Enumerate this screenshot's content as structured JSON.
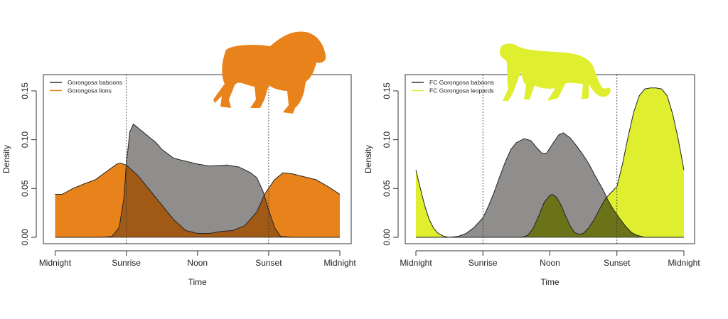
{
  "chart_data": [
    {
      "type": "area",
      "title": "",
      "xlabel": "Time",
      "ylabel": "Density",
      "xlim": [
        0,
        24
      ],
      "ylim": [
        0,
        0.165
      ],
      "xticks": [
        0,
        6,
        12,
        18,
        24
      ],
      "xtick_labels": [
        "Midnight",
        "Sunrise",
        "Noon",
        "Sunset",
        "Midnight"
      ],
      "yticks": [
        0,
        0.05,
        0.1,
        0.15
      ],
      "ytick_labels": [
        "0.00",
        "0.05",
        "0.10",
        "0.15"
      ],
      "vlines": [
        6,
        18
      ],
      "legend_position": "top-left",
      "overlap_color": "#a05a16",
      "series": [
        {
          "name": "Gorongosa baboons",
          "color": "#8f8e8c",
          "x": [
            0,
            4,
            4.8,
            5.4,
            5.8,
            6,
            6.3,
            6.6,
            7,
            7.8,
            8.5,
            9,
            10,
            11,
            12,
            13,
            14.5,
            15.5,
            16.5,
            17,
            17.5,
            18,
            18.5,
            19,
            20,
            24
          ],
          "y": [
            0,
            0,
            0.001,
            0.01,
            0.04,
            0.075,
            0.108,
            0.116,
            0.112,
            0.104,
            0.097,
            0.09,
            0.081,
            0.078,
            0.075,
            0.073,
            0.074,
            0.072,
            0.066,
            0.061,
            0.048,
            0.028,
            0.01,
            0.001,
            0,
            0
          ]
        },
        {
          "name": "Gorongosa lions",
          "color": "#e8821a",
          "x": [
            0,
            0.6,
            1.5,
            2.5,
            3.4,
            4.4,
            5.2,
            5.5,
            6,
            7,
            8,
            9,
            10,
            11,
            12,
            13,
            14,
            15,
            16,
            17,
            17.7,
            18.5,
            19.2,
            20,
            21,
            22,
            23,
            24
          ],
          "y": [
            0.044,
            0.044,
            0.05,
            0.055,
            0.059,
            0.068,
            0.075,
            0.076,
            0.074,
            0.063,
            0.048,
            0.033,
            0.018,
            0.007,
            0.004,
            0.004,
            0.006,
            0.007,
            0.012,
            0.026,
            0.045,
            0.059,
            0.066,
            0.065,
            0.062,
            0.059,
            0.052,
            0.044
          ]
        }
      ]
    },
    {
      "type": "area",
      "title": "",
      "xlabel": "Time",
      "ylabel": "Density",
      "xlim": [
        0,
        24
      ],
      "ylim": [
        0,
        0.165
      ],
      "xticks": [
        0,
        6,
        12,
        18,
        24
      ],
      "xtick_labels": [
        "Midnight",
        "Sunrise",
        "Noon",
        "Sunset",
        "Midnight"
      ],
      "yticks": [
        0,
        0.05,
        0.1,
        0.15
      ],
      "ytick_labels": [
        "0.00",
        "0.05",
        "0.10",
        "0.15"
      ],
      "vlines": [
        6,
        18
      ],
      "legend_position": "top-left",
      "overlap_color": "#6b7319",
      "series": [
        {
          "name": "FC Gorongosa baboons",
          "color": "#8f8e8c",
          "x": [
            0,
            2,
            3,
            3.8,
            4.5,
            5.2,
            6,
            6.5,
            7,
            7.5,
            8,
            8.5,
            9,
            9.7,
            10.3,
            10.8,
            11.3,
            11.7,
            12.2,
            12.8,
            13.2,
            13.8,
            14.3,
            15,
            15.5,
            16,
            16.7,
            17.2,
            17.6,
            18.2,
            18.8,
            19.3,
            19.8,
            20.5,
            24
          ],
          "y": [
            0,
            0,
            0,
            0.001,
            0.004,
            0.01,
            0.02,
            0.032,
            0.046,
            0.062,
            0.077,
            0.09,
            0.097,
            0.101,
            0.099,
            0.092,
            0.086,
            0.086,
            0.095,
            0.105,
            0.107,
            0.102,
            0.095,
            0.084,
            0.075,
            0.064,
            0.05,
            0.038,
            0.03,
            0.02,
            0.011,
            0.005,
            0.002,
            0,
            0
          ]
        },
        {
          "name": "FC Gorongosa leopards",
          "color": "#dfee2e",
          "x": [
            0,
            0.4,
            0.8,
            1.2,
            1.6,
            2,
            2.5,
            3,
            3.5,
            9.5,
            10,
            10.5,
            11,
            11.5,
            12,
            12.2,
            12.6,
            13,
            13.4,
            13.8,
            14.2,
            14.6,
            15,
            15.5,
            16,
            16.5,
            17,
            17.5,
            18,
            18.5,
            19,
            19.5,
            20,
            20.5,
            21,
            21.5,
            22,
            22.5,
            23,
            23.5,
            24
          ],
          "y": [
            0.069,
            0.05,
            0.032,
            0.018,
            0.009,
            0.004,
            0.001,
            0,
            0,
            0,
            0.002,
            0.009,
            0.022,
            0.036,
            0.043,
            0.044,
            0.041,
            0.033,
            0.022,
            0.012,
            0.005,
            0.003,
            0.004,
            0.01,
            0.019,
            0.03,
            0.04,
            0.046,
            0.052,
            0.075,
            0.103,
            0.128,
            0.145,
            0.152,
            0.153,
            0.153,
            0.152,
            0.145,
            0.126,
            0.1,
            0.069
          ]
        }
      ]
    }
  ]
}
